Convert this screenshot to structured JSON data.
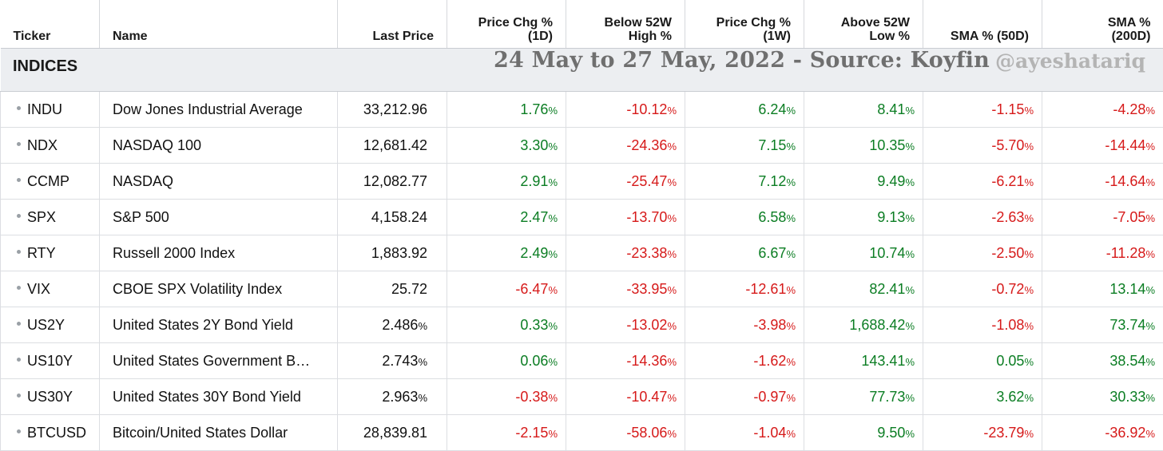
{
  "headers": [
    {
      "line1": "",
      "line2": "Ticker"
    },
    {
      "line1": "",
      "line2": "Name"
    },
    {
      "line1": "",
      "line2": "Last Price"
    },
    {
      "line1": "Price Chg %",
      "line2": "(1D)"
    },
    {
      "line1": "Below 52W",
      "line2": "High %"
    },
    {
      "line1": "Price Chg %",
      "line2": "(1W)"
    },
    {
      "line1": "Above 52W",
      "line2": "Low %"
    },
    {
      "line1": "",
      "line2": "SMA % (50D)"
    },
    {
      "line1": "SMA %",
      "line2": "(200D)"
    }
  ],
  "group": {
    "label": "INDICES",
    "banner": "24 May to 27 May, 2022 - Source: Koyfin",
    "handle": "@ayeshatariq"
  },
  "colors": {
    "positive": "#0b7d23",
    "negative": "#d61a1a",
    "banner_bg": "#eceef1"
  },
  "rows": [
    {
      "ticker": "INDU",
      "name": "Dow Jones Industrial Average",
      "price": "33,212.96",
      "price_unit": "",
      "chg1d": "1.76",
      "below52": "-10.12",
      "chg1w": "6.24",
      "above52": "8.41",
      "sma50": "-1.15",
      "sma200": "-4.28"
    },
    {
      "ticker": "NDX",
      "name": "NASDAQ 100",
      "price": "12,681.42",
      "price_unit": "",
      "chg1d": "3.30",
      "below52": "-24.36",
      "chg1w": "7.15",
      "above52": "10.35",
      "sma50": "-5.70",
      "sma200": "-14.44"
    },
    {
      "ticker": "CCMP",
      "name": "NASDAQ",
      "price": "12,082.77",
      "price_unit": "",
      "chg1d": "2.91",
      "below52": "-25.47",
      "chg1w": "7.12",
      "above52": "9.49",
      "sma50": "-6.21",
      "sma200": "-14.64"
    },
    {
      "ticker": "SPX",
      "name": "S&P 500",
      "price": "4,158.24",
      "price_unit": "",
      "chg1d": "2.47",
      "below52": "-13.70",
      "chg1w": "6.58",
      "above52": "9.13",
      "sma50": "-2.63",
      "sma200": "-7.05"
    },
    {
      "ticker": "RTY",
      "name": "Russell 2000 Index",
      "price": "1,883.92",
      "price_unit": "",
      "chg1d": "2.49",
      "below52": "-23.38",
      "chg1w": "6.67",
      "above52": "10.74",
      "sma50": "-2.50",
      "sma200": "-11.28"
    },
    {
      "ticker": "VIX",
      "name": "CBOE SPX Volatility Index",
      "price": "25.72",
      "price_unit": "",
      "chg1d": "-6.47",
      "below52": "-33.95",
      "chg1w": "-12.61",
      "above52": "82.41",
      "sma50": "-0.72",
      "sma200": "13.14"
    },
    {
      "ticker": "US2Y",
      "name": "United States 2Y Bond Yield",
      "price": "2.486",
      "price_unit": "%",
      "chg1d": "0.33",
      "below52": "-13.02",
      "chg1w": "-3.98",
      "above52": "1,688.42",
      "sma50": "-1.08",
      "sma200": "73.74"
    },
    {
      "ticker": "US10Y",
      "name": "United States Government B…",
      "price": "2.743",
      "price_unit": "%",
      "chg1d": "0.06",
      "below52": "-14.36",
      "chg1w": "-1.62",
      "above52": "143.41",
      "sma50": "0.05",
      "sma200": "38.54"
    },
    {
      "ticker": "US30Y",
      "name": "United States 30Y Bond Yield",
      "price": "2.963",
      "price_unit": "%",
      "chg1d": "-0.38",
      "below52": "-10.47",
      "chg1w": "-0.97",
      "above52": "77.73",
      "sma50": "3.62",
      "sma200": "30.33"
    },
    {
      "ticker": "BTCUSD",
      "name": "Bitcoin/United States Dollar",
      "price": "28,839.81",
      "price_unit": "",
      "chg1d": "-2.15",
      "below52": "-58.06",
      "chg1w": "-1.04",
      "above52": "9.50",
      "sma50": "-23.79",
      "sma200": "-36.92"
    }
  ],
  "pct_symbol": "%"
}
